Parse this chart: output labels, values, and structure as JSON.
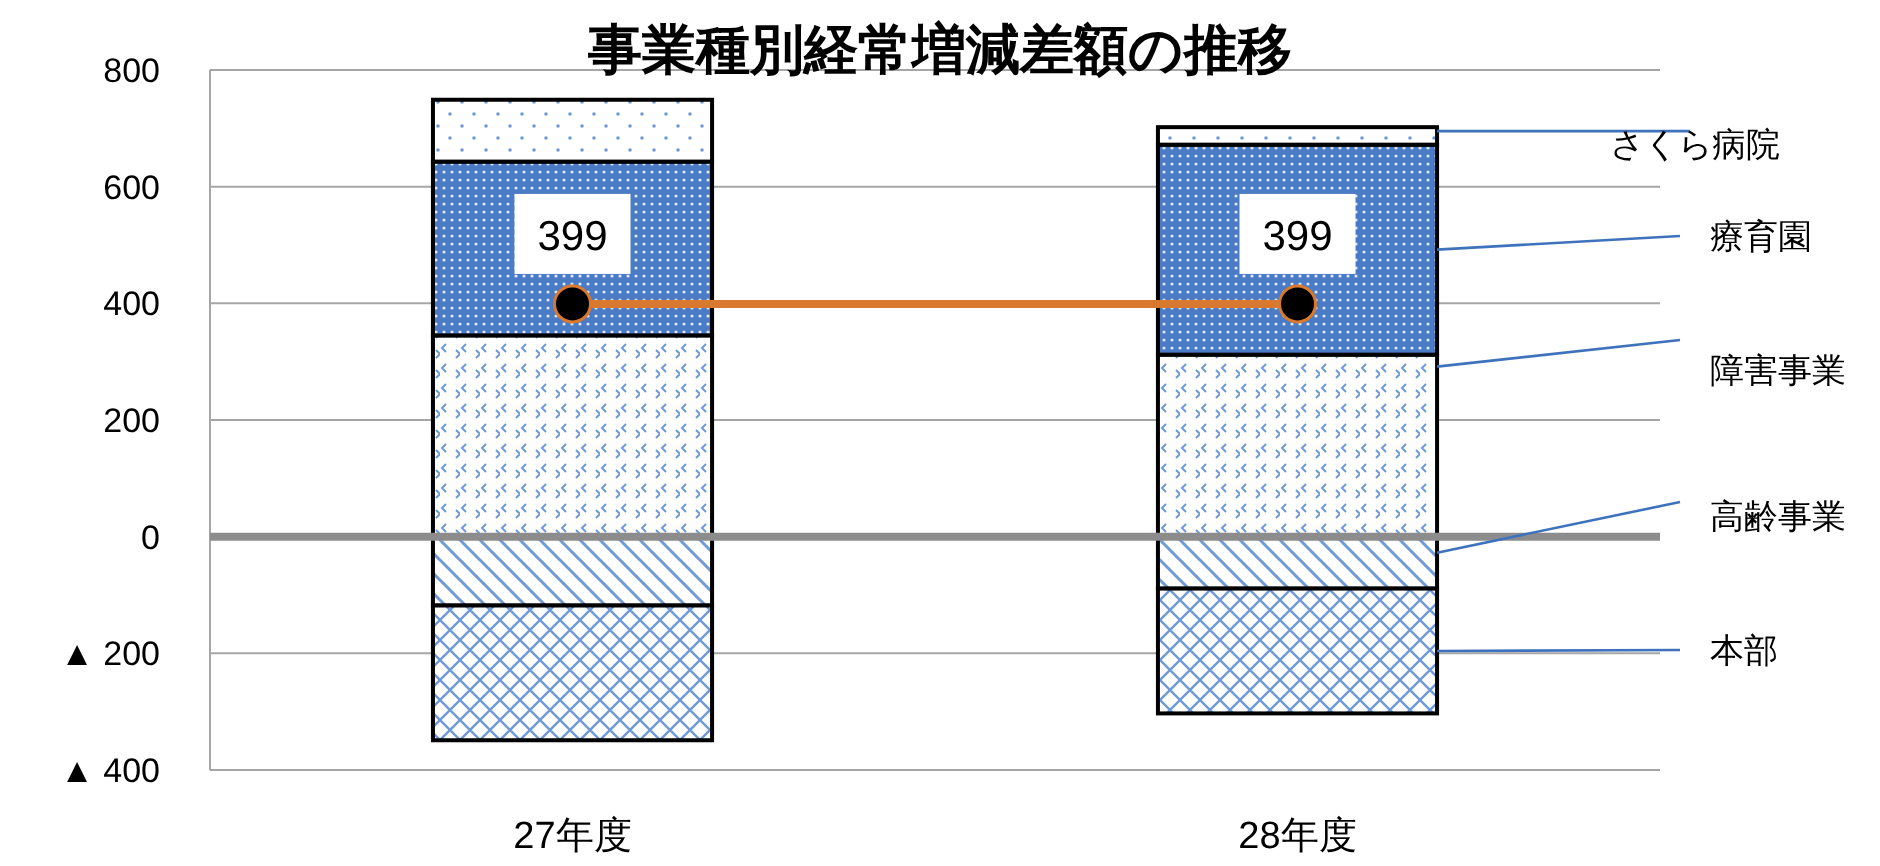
{
  "chart_data": {
    "type": "bar",
    "title": "事業種別経常増減差額の推移",
    "stacked": true,
    "legend": false,
    "grid": "y",
    "categories": [
      "27年度",
      "28年度"
    ],
    "ylim": [
      -400,
      800
    ],
    "yticks": [
      {
        "value": -400,
        "label": "▲ 400"
      },
      {
        "value": -200,
        "label": "▲ 200"
      },
      0,
      200,
      400,
      600,
      800
    ],
    "ref_lines": [
      {
        "axis": "y",
        "value": 0,
        "color": "#8c8c8c"
      }
    ],
    "series": [
      {
        "name": "高齢事業",
        "color": "#6f9ad6",
        "values": [
          -118,
          -89
        ]
      },
      {
        "name": "本部",
        "color": "#6f9ad6",
        "values": [
          -231,
          -214
        ]
      },
      {
        "name": "障害事業",
        "color": "#6f9ad6",
        "values": [
          345,
          312
        ]
      },
      {
        "name": "療育園",
        "color": "#4a7bc4",
        "values": [
          298,
          360
        ]
      },
      {
        "name": "さくら病院",
        "color": "#6f9ad6",
        "values": [
          106,
          30
        ]
      },
      {
        "type": "line",
        "color": "#d9782f",
        "marker": "circle",
        "values": [
          399,
          399
        ],
        "value_labels": [
          "399",
          "399"
        ]
      }
    ]
  }
}
